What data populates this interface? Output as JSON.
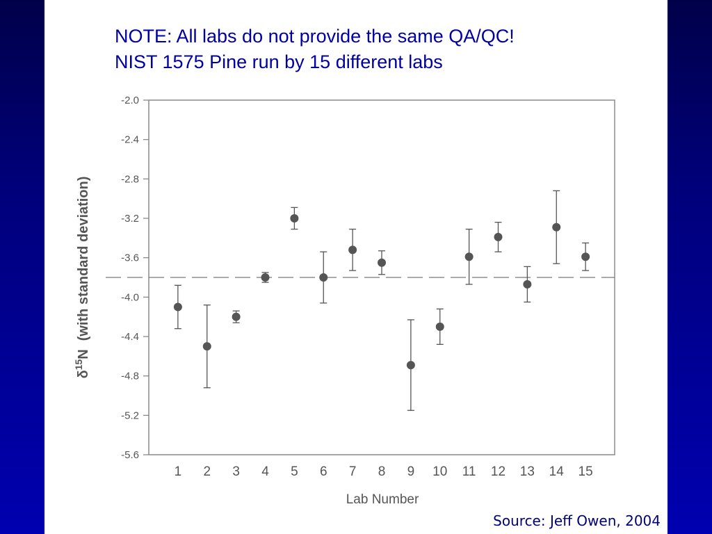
{
  "slide": {
    "title_lines": [
      "NOTE: All labs do not provide the same QA/QC!",
      "NIST 1575 Pine run by 15 different labs"
    ],
    "source": "Source: Jeff Owen, 2004"
  },
  "colors": {
    "background_dark": "#00004a",
    "background_light": "#0000b0",
    "title_text": "#0000a0",
    "marker": "#555555",
    "axis_text": "#555555"
  },
  "chart_data": {
    "type": "scatter",
    "xlabel": "Lab Number",
    "ylabel_symbol": "δ",
    "ylabel_superscript": "15",
    "ylabel_element": "N",
    "ylabel_note": "(with standard deviation)",
    "xlim": [
      0,
      16
    ],
    "ylim": [
      -5.6,
      -2.0
    ],
    "y_ticks": [
      -2.0,
      -2.4,
      -2.8,
      -3.2,
      -3.6,
      -4.0,
      -4.4,
      -4.8,
      -5.2,
      -5.6
    ],
    "y_tick_labels": [
      "-2.0",
      "-2.4",
      "-2.8",
      "-3.2",
      "-3.6",
      "-4.0",
      "-4.4",
      "-4.8",
      "-5.2",
      "-5.6"
    ],
    "x_ticks": [
      1,
      2,
      3,
      4,
      5,
      6,
      7,
      8,
      9,
      10,
      11,
      12,
      13,
      14,
      15
    ],
    "x_tick_labels": [
      "1",
      "2",
      "3",
      "4",
      "5",
      "6",
      "7",
      "8",
      "9",
      "10",
      "11",
      "12",
      "13",
      "14",
      "15"
    ],
    "reference_line": -3.8,
    "grid": false,
    "points": [
      {
        "lab": 1,
        "mean": -4.1,
        "sd": 0.22
      },
      {
        "lab": 2,
        "mean": -4.5,
        "sd": 0.42
      },
      {
        "lab": 3,
        "mean": -4.2,
        "sd": 0.06
      },
      {
        "lab": 4,
        "mean": -3.8,
        "sd": 0.05
      },
      {
        "lab": 5,
        "mean": -3.2,
        "sd": 0.11
      },
      {
        "lab": 6,
        "mean": -3.8,
        "sd": 0.26
      },
      {
        "lab": 7,
        "mean": -3.52,
        "sd": 0.21
      },
      {
        "lab": 8,
        "mean": -3.65,
        "sd": 0.12
      },
      {
        "lab": 9,
        "mean": -4.69,
        "sd": 0.46
      },
      {
        "lab": 10,
        "mean": -4.3,
        "sd": 0.18
      },
      {
        "lab": 11,
        "mean": -3.59,
        "sd": 0.28
      },
      {
        "lab": 12,
        "mean": -3.39,
        "sd": 0.15
      },
      {
        "lab": 13,
        "mean": -3.87,
        "sd": 0.18
      },
      {
        "lab": 14,
        "mean": -3.29,
        "sd": 0.37
      },
      {
        "lab": 15,
        "mean": -3.59,
        "sd": 0.14
      }
    ]
  }
}
